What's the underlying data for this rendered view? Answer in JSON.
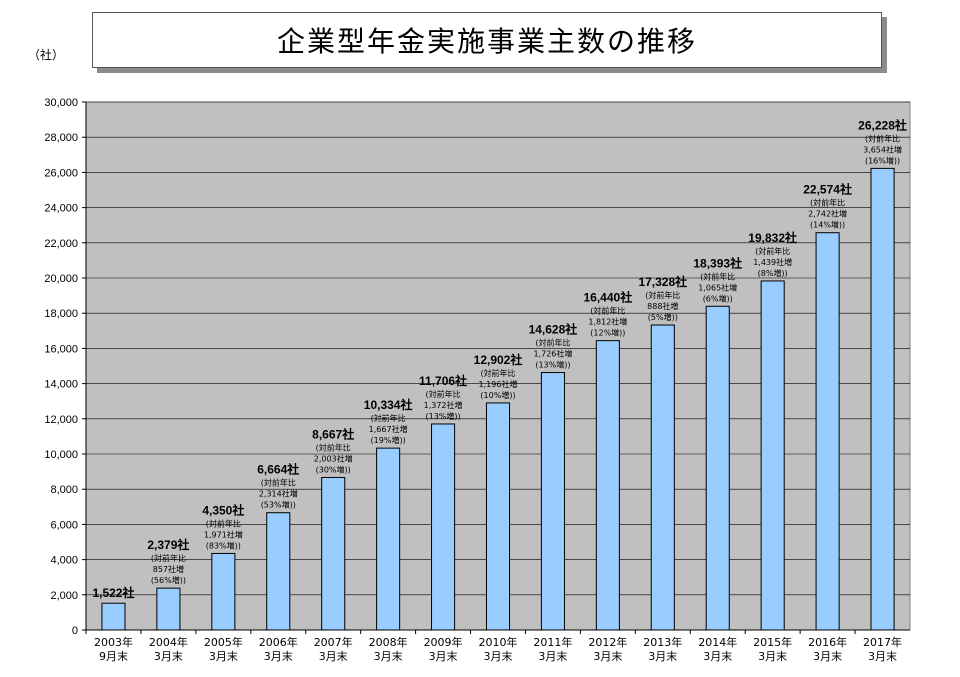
{
  "title": "企業型年金実施事業主数の推移",
  "unit": "（社）",
  "colors": {
    "plot_bg": "#c0c0c0",
    "bar_fill": "#99ccff",
    "bar_stroke": "#000000"
  },
  "chart_data": {
    "type": "bar",
    "title": "企業型年金実施事業主数の推移",
    "ylabel": "（社）",
    "ylim": [
      0,
      30000
    ],
    "yticks": [
      0,
      2000,
      4000,
      6000,
      8000,
      10000,
      12000,
      14000,
      16000,
      18000,
      20000,
      22000,
      24000,
      26000,
      28000,
      30000
    ],
    "ytick_labels": [
      "0",
      "2,000",
      "4,000",
      "6,000",
      "8,000",
      "10,000",
      "12,000",
      "14,000",
      "16,000",
      "18,000",
      "20,000",
      "22,000",
      "24,000",
      "26,000",
      "28,000",
      "30,000"
    ],
    "grid": true,
    "categories": [
      [
        "2003年",
        "9月末"
      ],
      [
        "2004年",
        "3月末"
      ],
      [
        "2005年",
        "3月末"
      ],
      [
        "2006年",
        "3月末"
      ],
      [
        "2007年",
        "3月末"
      ],
      [
        "2008年",
        "3月末"
      ],
      [
        "2009年",
        "3月末"
      ],
      [
        "2010年",
        "3月末"
      ],
      [
        "2011年",
        "3月末"
      ],
      [
        "2012年",
        "3月末"
      ],
      [
        "2013年",
        "3月末"
      ],
      [
        "2014年",
        "3月末"
      ],
      [
        "2015年",
        "3月末"
      ],
      [
        "2016年",
        "3月末"
      ],
      [
        "2017年",
        "3月末"
      ]
    ],
    "values": [
      1522,
      2379,
      4350,
      6664,
      8667,
      10334,
      11706,
      12902,
      14628,
      16440,
      17328,
      18393,
      19832,
      22574,
      26228
    ],
    "value_labels": [
      "1,522社",
      "2,379社",
      "4,350社",
      "6,664社",
      "8,667社",
      "10,334社",
      "11,706社",
      "12,902社",
      "14,628社",
      "16,440社",
      "17,328社",
      "18,393社",
      "19,832社",
      "22,574社",
      "26,228社"
    ],
    "annotations": [
      [],
      [
        "(対前年比",
        "857社増",
        "(56%増))"
      ],
      [
        "(対前年比",
        "1,971社増",
        "(83%増))"
      ],
      [
        "(対前年比",
        "2,314社増",
        "(53%増))"
      ],
      [
        "(対前年比",
        "2,003社増",
        "(30%増))"
      ],
      [
        "(対前年比",
        "1,667社増",
        "(19%増))"
      ],
      [
        "(対前年比",
        "1,372社増",
        "(13%増))"
      ],
      [
        "(対前年比",
        "1,196社増",
        "(10%増))"
      ],
      [
        "(対前年比",
        "1,726社増",
        "(13%増))"
      ],
      [
        "(対前年比",
        "1,812社増",
        "(12%増))"
      ],
      [
        "(対前年比",
        "888社増",
        "(5%増))"
      ],
      [
        "(対前年比",
        "1,065社増",
        "(6%増))"
      ],
      [
        "(対前年比",
        "1,439社増",
        "(8%増))"
      ],
      [
        "(対前年比",
        "2,742社増",
        "(14%増))"
      ],
      [
        "(対前年比",
        "3,654社増",
        "(16%増))"
      ]
    ]
  }
}
